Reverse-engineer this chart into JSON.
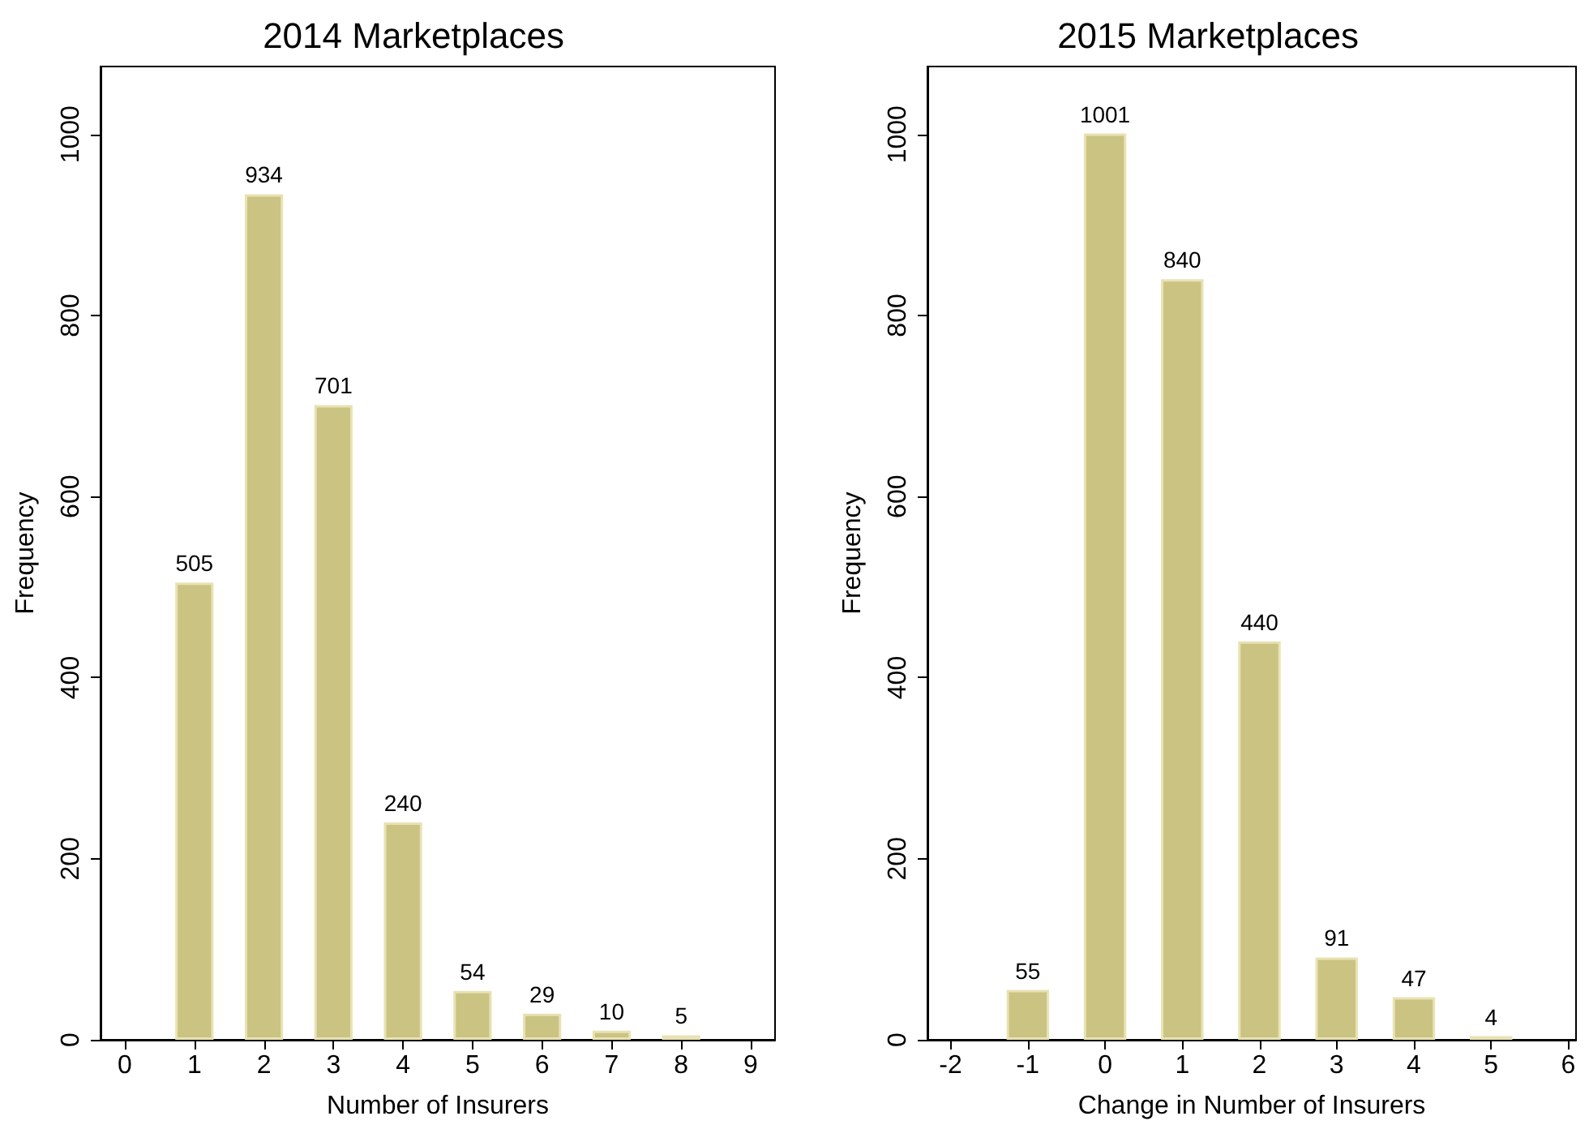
{
  "chart_data": [
    {
      "type": "bar",
      "title": "2014 Marketplaces",
      "xlabel": "Number of Insurers",
      "ylabel": "Frequency",
      "x": [
        1,
        2,
        3,
        4,
        5,
        6,
        7,
        8
      ],
      "values": [
        505,
        934,
        701,
        240,
        54,
        29,
        10,
        5
      ],
      "color": "#cbc382",
      "data_labels": true,
      "xlim": [
        -0.35,
        9.35
      ],
      "xticks": [
        0,
        1,
        2,
        3,
        4,
        5,
        6,
        7,
        8,
        9
      ],
      "ylim": [
        0,
        1075
      ],
      "yticks": [
        0,
        200,
        400,
        600,
        800,
        1000
      ]
    },
    {
      "type": "bar",
      "title": "2015 Marketplaces",
      "xlabel": "Change in Number of Insurers",
      "ylabel": "Frequency",
      "x": [
        -1,
        0,
        1,
        2,
        3,
        4,
        5
      ],
      "values": [
        55,
        1001,
        840,
        440,
        91,
        47,
        4
      ],
      "color": "#cbc382",
      "data_labels": true,
      "xlim": [
        -2.3,
        6.1
      ],
      "xticks": [
        -2,
        -1,
        0,
        1,
        2,
        3,
        4,
        5,
        6
      ],
      "ylim": [
        0,
        1075
      ],
      "yticks": [
        0,
        200,
        400,
        600,
        800,
        1000
      ]
    }
  ]
}
